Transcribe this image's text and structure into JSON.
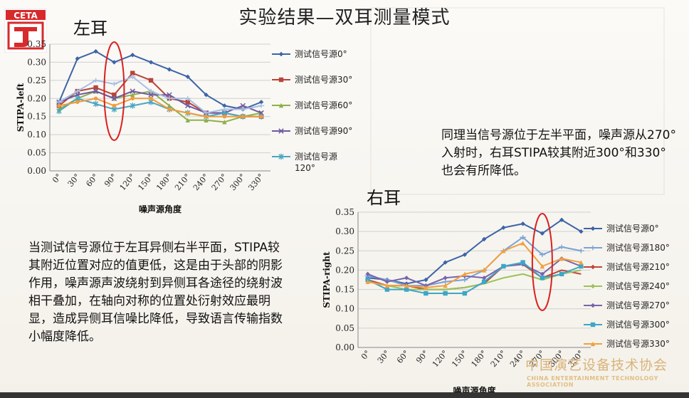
{
  "slide": {
    "title": "实验结果—双耳测量模式",
    "logo_text": "CETA",
    "left_label": "左耳",
    "right_label": "右耳",
    "note_right": "同理当信号源位于左半平面，噪声源从270°入射时，右耳STIPA较其附近300°和330°也会有所降低。",
    "paragraph": "当测试信号源位于左耳异侧右半平面，STIPA较其附近位置对应的值更低，这是由于头部的阴影作用，噪声源声波绕射到异侧耳各途径的绕射波相干叠加，在轴向对称的位置处衍射效应最明显，造成异侧耳信噪比降低，导致语言传输指数小幅度降低。",
    "watermark_cn": "中国演艺设备技术协会",
    "watermark_en": "CHINA ENTERTAINMENT TECHNOLOGY ASSOCIATION",
    "colors": {
      "accent_red": "#d9201f",
      "logo_red": "#d8292b"
    }
  },
  "chart_data": [
    {
      "type": "line",
      "ylabel": "STIPA-left",
      "xlabel": "噪声源角度",
      "categories": [
        "0°",
        "30°",
        "60°",
        "90°",
        "120°",
        "150°",
        "180°",
        "210°",
        "240°",
        "270°",
        "300°",
        "330°"
      ],
      "ylim": [
        0,
        0.35
      ],
      "yticks": [
        "0.00",
        "0.05",
        "0.10",
        "0.15",
        "0.20",
        "0.25",
        "0.30",
        "0.35"
      ],
      "legend_position": "right",
      "series": [
        {
          "name": "测试信号源0°",
          "color": "#3d64a8",
          "marker": "diamond",
          "values": [
            0.19,
            0.31,
            0.33,
            0.3,
            0.32,
            0.3,
            0.28,
            0.26,
            0.21,
            0.18,
            0.17,
            0.19
          ]
        },
        {
          "name": "测试信号源30°",
          "color": "#b8443a",
          "marker": "square",
          "values": [
            0.18,
            0.22,
            0.23,
            0.21,
            0.27,
            0.25,
            0.2,
            0.19,
            0.16,
            0.16,
            0.15,
            0.15
          ]
        },
        {
          "name": "测试信号源60°",
          "color": "#8db04a",
          "marker": "triangle",
          "values": [
            0.17,
            0.2,
            0.22,
            0.2,
            0.21,
            0.22,
            0.18,
            0.14,
            0.14,
            0.135,
            0.15,
            0.16
          ]
        },
        {
          "name": "测试信号源90°",
          "color": "#6d58a0",
          "marker": "x",
          "values": [
            0.19,
            0.21,
            0.22,
            0.2,
            0.22,
            0.21,
            0.21,
            0.18,
            0.16,
            0.16,
            0.18,
            0.16
          ]
        },
        {
          "name": "测试信号源120°",
          "color": "#4aa7c2",
          "marker": "asterisk",
          "values": [
            0.165,
            0.2,
            0.185,
            0.17,
            0.18,
            0.19,
            0.17,
            0.16,
            0.15,
            0.16,
            0.15,
            0.15
          ]
        },
        {
          "name": "",
          "color": "#f29a3a",
          "marker": "circle",
          "values": [
            0.18,
            0.19,
            0.2,
            0.18,
            0.2,
            0.2,
            0.17,
            0.16,
            0.15,
            0.15,
            0.15,
            0.15
          ]
        },
        {
          "name": "",
          "color": "#a6bfe3",
          "marker": "plus",
          "values": [
            0.19,
            0.22,
            0.25,
            0.24,
            0.26,
            0.22,
            0.2,
            0.2,
            0.16,
            0.17,
            0.17,
            0.18
          ]
        }
      ],
      "legend": [
        "测试信号源0°",
        "测试信号源30°",
        "测试信号源60°",
        "测试信号源90°",
        "测试信号源",
        "120°"
      ],
      "highlight_category": "90°"
    },
    {
      "type": "line",
      "ylabel": "STIPA-right",
      "xlabel": "噪声源角度",
      "categories": [
        "0°",
        "30°",
        "60°",
        "90°",
        "120°",
        "150°",
        "180°",
        "210°",
        "240°",
        "270°",
        "300°",
        "330°"
      ],
      "ylim": [
        0,
        0.35
      ],
      "yticks": [
        "0.00",
        "0.05",
        "0.10",
        "0.15",
        "0.20",
        "0.25",
        "0.30",
        "0.35"
      ],
      "legend_position": "right",
      "series": [
        {
          "name": "测试信号源0°",
          "color": "#3d64a8",
          "marker": "diamond",
          "values": [
            0.18,
            0.175,
            0.165,
            0.175,
            0.22,
            0.24,
            0.28,
            0.31,
            0.32,
            0.295,
            0.33,
            0.3
          ]
        },
        {
          "name": "测试信号源180°",
          "color": "#7aa2d6",
          "marker": "plus",
          "values": [
            0.185,
            0.175,
            0.16,
            0.16,
            0.17,
            0.175,
            0.2,
            0.25,
            0.285,
            0.24,
            0.26,
            0.25
          ]
        },
        {
          "name": "测试信号源210°",
          "color": "#c0443a",
          "marker": "none",
          "values": [
            0.175,
            0.16,
            0.16,
            0.15,
            0.15,
            0.155,
            0.165,
            0.21,
            0.215,
            0.18,
            0.2,
            0.19
          ]
        },
        {
          "name": "测试信号源240°",
          "color": "#9cc15a",
          "marker": "none",
          "values": [
            0.17,
            0.16,
            0.15,
            0.15,
            0.15,
            0.155,
            0.165,
            0.18,
            0.19,
            0.175,
            0.19,
            0.2
          ]
        },
        {
          "name": "测试信号源270°",
          "color": "#7a63ab",
          "marker": "diamond",
          "values": [
            0.19,
            0.17,
            0.18,
            0.16,
            0.18,
            0.185,
            0.18,
            0.21,
            0.215,
            0.19,
            0.23,
            0.21
          ]
        },
        {
          "name": "测试信号源300°",
          "color": "#3ca7c7",
          "marker": "square",
          "values": [
            0.175,
            0.15,
            0.15,
            0.14,
            0.14,
            0.14,
            0.17,
            0.21,
            0.22,
            0.18,
            0.19,
            0.21
          ]
        },
        {
          "name": "测试信号源330°",
          "color": "#f0a040",
          "marker": "triangle",
          "values": [
            0.17,
            0.16,
            0.16,
            0.155,
            0.16,
            0.19,
            0.2,
            0.25,
            0.27,
            0.21,
            0.23,
            0.22
          ]
        }
      ],
      "legend": [
        "测试信号源0°",
        "测试信号源180°",
        "测试信号源210°",
        "测试信号源240°",
        "测试信号源270°",
        "测试信号源300°",
        "测试信号源330°"
      ],
      "highlight_category": "270°"
    }
  ]
}
